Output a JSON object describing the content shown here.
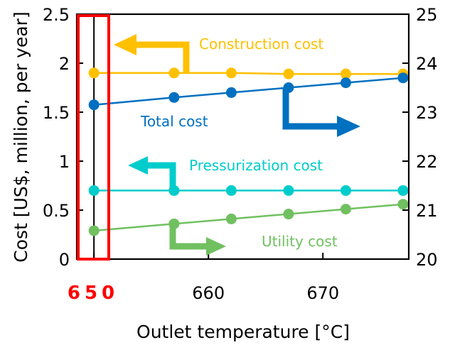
{
  "chart_data": {
    "type": "line",
    "xlabel": "Outlet temperature [°C]",
    "ylabel": "Cost [US$, million, per year]",
    "xlim": [
      648.5,
      677.5
    ],
    "ylim_left": [
      0,
      2.5
    ],
    "ylim_right": [
      20,
      25
    ],
    "x_ticks": [
      "660",
      "670"
    ],
    "x_tick_values": [
      660,
      670
    ],
    "highlight_label": "650",
    "highlight_x": 650,
    "y_ticks_left": [
      "0",
      "0.5",
      "1",
      "1.5",
      "2",
      "2.5"
    ],
    "y_tick_values_left": [
      0,
      0.5,
      1,
      1.5,
      2,
      2.5
    ],
    "y_ticks_right": [
      "20",
      "21",
      "22",
      "23",
      "24",
      "25"
    ],
    "y_tick_values_right": [
      20,
      21,
      22,
      23,
      24,
      25
    ],
    "x": [
      650,
      657,
      662,
      667,
      672,
      677
    ],
    "series": [
      {
        "name": "Construction cost",
        "axis": "left",
        "color": "#ffc000",
        "values": [
          1.9,
          1.9,
          1.9,
          1.89,
          1.89,
          1.89
        ]
      },
      {
        "name": "Total cost",
        "axis": "right",
        "color": "#0070c0",
        "values": [
          23.15,
          23.3,
          23.4,
          23.5,
          23.6,
          23.7
        ]
      },
      {
        "name": "Pressurization cost",
        "axis": "left",
        "color": "#00cccc",
        "values": [
          0.7,
          0.7,
          0.7,
          0.7,
          0.7,
          0.7
        ]
      },
      {
        "name": "Utility cost",
        "axis": "right",
        "color": "#70c060",
        "values": [
          20.58,
          20.72,
          20.82,
          20.92,
          21.02,
          21.12
        ]
      }
    ],
    "grid": false,
    "highlight_color": "#ff0000"
  }
}
